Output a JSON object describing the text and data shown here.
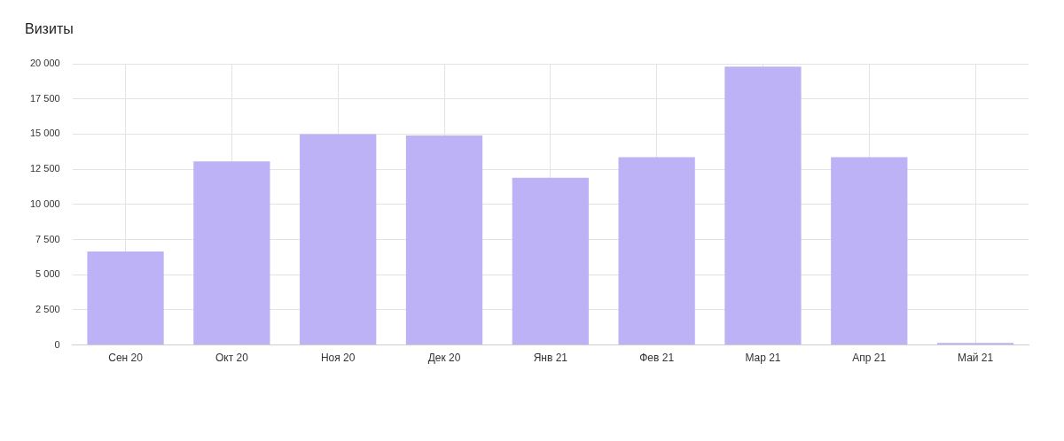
{
  "chart_data": {
    "type": "bar",
    "title": "Визиты",
    "categories": [
      "Сен 20",
      "Окт 20",
      "Ноя 20",
      "Дек 20",
      "Янв 21",
      "Фев 21",
      "Мар 21",
      "Апр 21",
      "Май 21"
    ],
    "values": [
      6650,
      13050,
      15000,
      14900,
      11900,
      13350,
      19800,
      13350,
      150
    ],
    "color": "#bdb2f5",
    "ylim": [
      0,
      20000
    ],
    "yticks": [
      {
        "value": 0,
        "label": "0"
      },
      {
        "value": 2500,
        "label": "2 500"
      },
      {
        "value": 5000,
        "label": "5 000"
      },
      {
        "value": 7500,
        "label": "7 500"
      },
      {
        "value": 10000,
        "label": "10 000"
      },
      {
        "value": 12500,
        "label": "12 500"
      },
      {
        "value": 15000,
        "label": "15 000"
      },
      {
        "value": 17500,
        "label": "17 500"
      },
      {
        "value": 20000,
        "label": "20 000"
      }
    ],
    "grid": true
  }
}
